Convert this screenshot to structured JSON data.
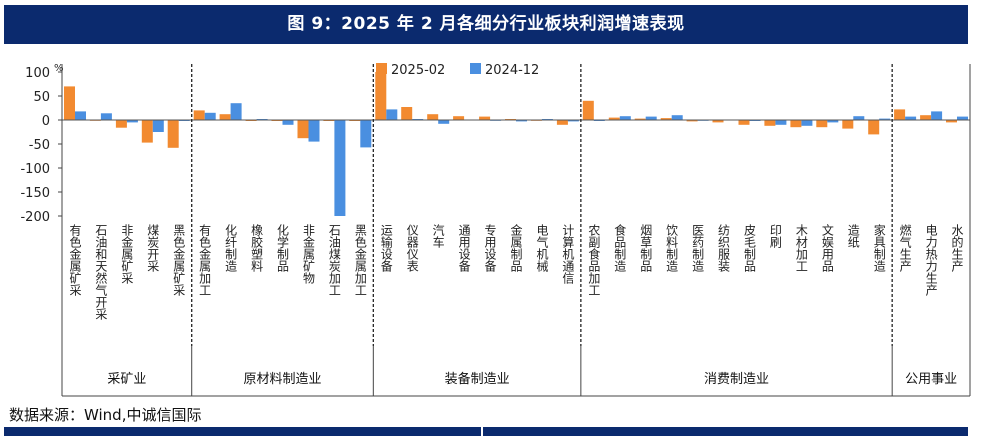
{
  "title": "图 9：2025 年 2 月各细分行业板块利润增速表现",
  "source": "数据来源：Wind,中诚信国际",
  "chart_data": {
    "type": "bar",
    "title": "",
    "xlabel": "",
    "ylabel": "",
    "y_unit": "%",
    "ylim": [
      -200,
      100
    ],
    "yticks": [
      100,
      50,
      0,
      -50,
      -100,
      -150,
      -200
    ],
    "legend": "top",
    "grid": false,
    "categories": [
      "有色金属矿采",
      "石油和天然气开采",
      "非金属矿采",
      "煤炭开采",
      "黑色金属矿采",
      "有色金属加工",
      "化纤制造",
      "橡胶塑料",
      "化学制品",
      "非金属矿物",
      "石油煤炭加工",
      "黑色金属加工",
      "运输设备",
      "仪器仪表",
      "汽车",
      "通用设备",
      "专用设备",
      "金属制品",
      "电气机械",
      "计算机通信",
      "农副食品加工",
      "食品制造",
      "烟草制品",
      "饮料制造",
      "医药制造",
      "纺织服装",
      "皮毛制品",
      "印刷",
      "木材加工",
      "文娱用品",
      "造纸",
      "家具制造",
      "燃气生产",
      "电力热力生产",
      "水的生产"
    ],
    "series": [
      {
        "name": "2025-02",
        "color": "#f28a30",
        "values": [
          70,
          -1,
          -16,
          -47,
          -58,
          20,
          12,
          -2,
          -2,
          -38,
          -2,
          -2,
          100,
          27,
          12,
          8,
          7,
          2,
          -1,
          -10,
          40,
          5,
          3,
          4,
          -3,
          -5,
          -10,
          -12,
          -15,
          -15,
          -18,
          -30,
          22,
          10,
          -5
        ]
      },
      {
        "name": "2024-12",
        "color": "#4a8fe0",
        "values": [
          18,
          14,
          -5,
          -25,
          -2,
          15,
          35,
          2,
          -10,
          -45,
          -200,
          -57,
          22,
          2,
          -8,
          1,
          -1,
          -3,
          2,
          -3,
          -2,
          8,
          7,
          10,
          -1,
          1,
          -2,
          -10,
          -12,
          -5,
          8,
          3,
          7,
          18,
          7
        ]
      }
    ],
    "groups": [
      {
        "label": "采矿业",
        "start": 0,
        "end": 4
      },
      {
        "label": "原材料制造业",
        "start": 5,
        "end": 11
      },
      {
        "label": "装备制造业",
        "start": 12,
        "end": 19
      },
      {
        "label": "消费制造业",
        "start": 20,
        "end": 31
      },
      {
        "label": "公用事业",
        "start": 32,
        "end": 34
      }
    ]
  }
}
